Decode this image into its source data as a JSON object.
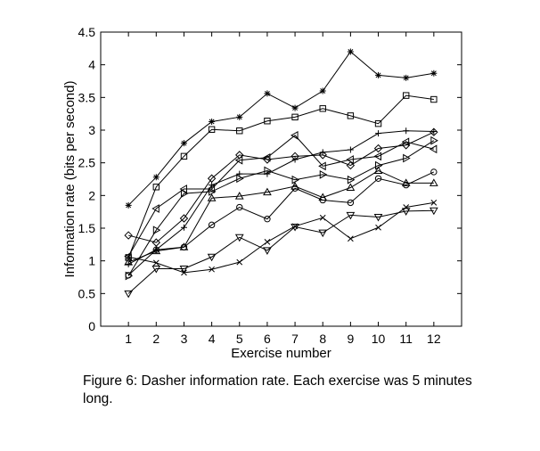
{
  "chart_data": {
    "type": "line",
    "title": "",
    "xlabel": "Exercise number",
    "ylabel": "Information rate (bits per second)",
    "xlim": [
      0,
      13
    ],
    "ylim": [
      0,
      4.5
    ],
    "xticks": [
      1,
      2,
      3,
      4,
      5,
      6,
      7,
      8,
      9,
      10,
      11,
      12
    ],
    "yticks": [
      0,
      0.5,
      1,
      1.5,
      2,
      2.5,
      3,
      3.5,
      4,
      4.5
    ],
    "ytick_labels": [
      "0",
      "0.5",
      "1",
      "1.5",
      "2",
      "2.5",
      "3",
      "3.5",
      "4",
      "4.5"
    ],
    "x": [
      1,
      2,
      3,
      4,
      5,
      6,
      7,
      8,
      9,
      10,
      11,
      12
    ],
    "series": [
      {
        "name": "asterisk",
        "marker": "asterisk",
        "values": [
          1.85,
          2.28,
          2.8,
          3.13,
          3.2,
          3.56,
          3.34,
          3.6,
          4.2,
          3.84,
          3.8,
          3.87
        ]
      },
      {
        "name": "square",
        "marker": "square",
        "values": [
          1.05,
          2.13,
          2.6,
          3.01,
          2.99,
          3.14,
          3.2,
          3.33,
          3.22,
          3.1,
          3.53,
          3.47
        ]
      },
      {
        "name": "plus",
        "marker": "plus",
        "values": [
          0.95,
          1.17,
          1.51,
          2.16,
          2.33,
          2.33,
          2.55,
          2.66,
          2.7,
          2.95,
          2.99,
          2.98
        ]
      },
      {
        "name": "diamond",
        "marker": "diamond",
        "values": [
          1.39,
          1.28,
          1.65,
          2.26,
          2.62,
          2.55,
          2.6,
          2.62,
          2.46,
          2.72,
          2.77,
          2.97
        ]
      },
      {
        "name": "triangle-left",
        "marker": "triangle-left",
        "values": [
          1.07,
          1.8,
          2.1,
          2.1,
          2.54,
          2.58,
          2.92,
          2.45,
          2.55,
          2.6,
          2.82,
          2.71
        ]
      },
      {
        "name": "triangle-right",
        "marker": "triangle-right",
        "values": [
          0.77,
          1.47,
          2.03,
          2.06,
          2.26,
          2.38,
          2.24,
          2.32,
          2.24,
          2.46,
          2.57,
          2.84
        ]
      },
      {
        "name": "triangle-up",
        "marker": "triangle-up",
        "values": [
          0.98,
          1.15,
          1.21,
          1.96,
          1.99,
          2.05,
          2.14,
          1.97,
          2.12,
          2.38,
          2.19,
          2.19
        ]
      },
      {
        "name": "circle",
        "marker": "circle",
        "values": [
          0.78,
          1.17,
          1.21,
          1.55,
          1.82,
          1.64,
          2.11,
          1.93,
          1.89,
          2.26,
          2.16,
          2.36
        ]
      },
      {
        "name": "cross",
        "marker": "cross",
        "values": [
          1.06,
          0.97,
          0.82,
          0.87,
          0.98,
          1.29,
          1.53,
          1.66,
          1.34,
          1.51,
          1.82,
          1.89
        ]
      },
      {
        "name": "triangle-down",
        "marker": "triangle-down",
        "values": [
          0.5,
          0.88,
          0.88,
          1.06,
          1.36,
          1.16,
          1.52,
          1.43,
          1.7,
          1.67,
          1.76,
          1.77
        ]
      }
    ]
  },
  "caption": {
    "text": "Figure 6: Dasher information rate. Each exercise was 5 minutes long."
  }
}
